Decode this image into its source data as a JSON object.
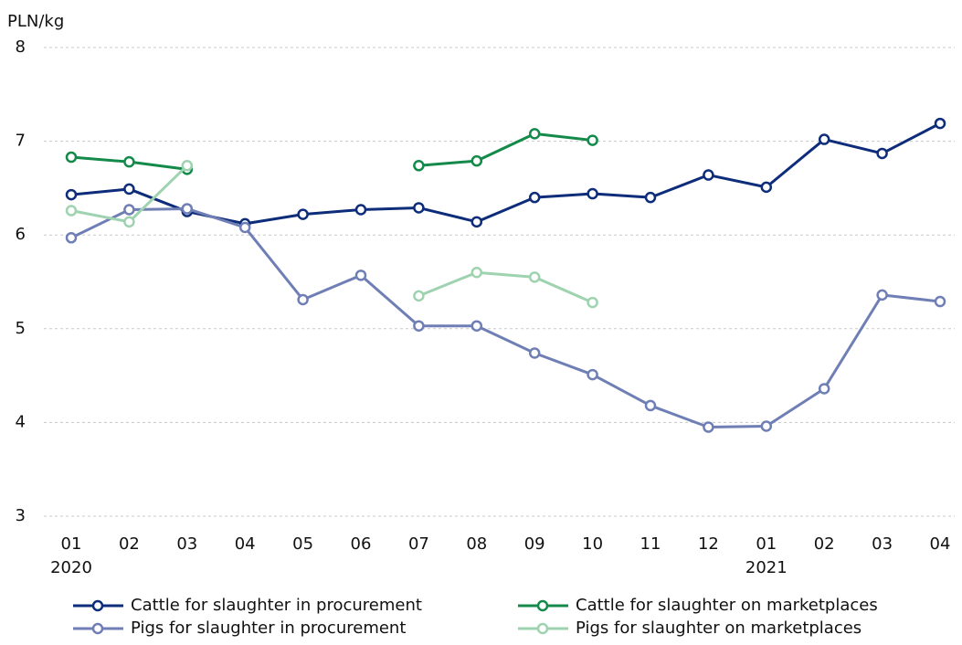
{
  "chart_data": {
    "type": "line",
    "y_label": "PLN/kg",
    "categories": [
      "01",
      "02",
      "03",
      "04",
      "05",
      "06",
      "07",
      "08",
      "09",
      "10",
      "11",
      "12",
      "01",
      "02",
      "03",
      "04"
    ],
    "years": [
      "2020",
      null,
      null,
      null,
      null,
      null,
      null,
      null,
      null,
      null,
      null,
      null,
      "2021",
      null,
      null,
      null
    ],
    "series": [
      {
        "name": "Cattle for slaughter in procurement",
        "color": "#0d2c7a",
        "values": [
          6.43,
          6.49,
          6.25,
          6.12,
          6.22,
          6.27,
          6.29,
          6.14,
          6.4,
          6.44,
          6.4,
          6.64,
          6.51,
          7.02,
          6.87,
          7.19
        ]
      },
      {
        "name": "Pigs for slaughter in procurement",
        "color": "#6f7fb5",
        "values": [
          5.97,
          6.27,
          6.28,
          6.08,
          5.31,
          5.57,
          5.03,
          5.03,
          4.74,
          4.51,
          4.18,
          3.95,
          3.96,
          4.36,
          5.36,
          5.29
        ]
      },
      {
        "name": "Cattle for slaughter on marketplaces",
        "color": "#138a4a",
        "values": [
          6.83,
          6.78,
          6.7,
          null,
          null,
          null,
          6.74,
          6.79,
          7.08,
          7.01,
          null,
          null,
          null,
          null,
          null,
          null
        ]
      },
      {
        "name": "Pigs for slaughter on marketplaces",
        "color": "#9fd3b0",
        "values": [
          6.26,
          6.14,
          6.74,
          null,
          null,
          null,
          5.35,
          5.6,
          5.55,
          5.28,
          null,
          null,
          null,
          null,
          null,
          null
        ]
      }
    ],
    "ylim": [
      3,
      8
    ],
    "yticks": [
      3,
      4,
      5,
      6,
      7,
      8
    ],
    "grid": true,
    "legend": "bottom"
  }
}
